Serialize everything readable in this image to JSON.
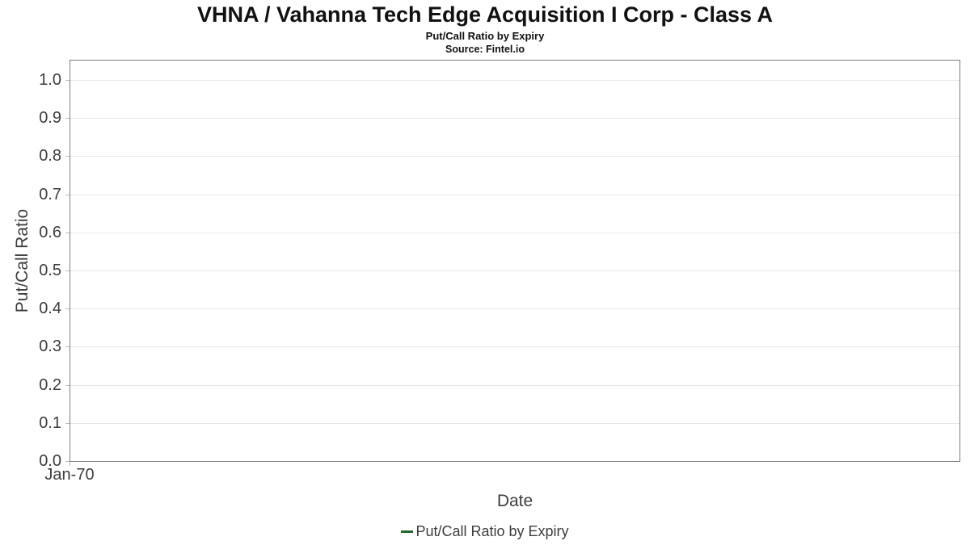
{
  "chart_data": {
    "type": "line",
    "title": "VHNA / Vahanna Tech Edge Acquisition I Corp - Class A",
    "subtitle": "Put/Call Ratio by Expiry",
    "source": "Source: Fintel.io",
    "xlabel": "Date",
    "ylabel": "Put/Call Ratio",
    "x_tick_labels": [
      "Jan-70"
    ],
    "y_tick_labels": [
      "0.0",
      "0.1",
      "0.2",
      "0.3",
      "0.4",
      "0.5",
      "0.6",
      "0.7",
      "0.8",
      "0.9",
      "1.0"
    ],
    "ylim": [
      0.0,
      1.05
    ],
    "grid": true,
    "legend_position": "bottom",
    "series": [
      {
        "name": "Put/Call Ratio by Expiry",
        "color": "#26642f",
        "x": [],
        "values": []
      }
    ]
  },
  "colors": {
    "plot_border": "#7d7d7d",
    "gridline": "#e7e7e7",
    "tick_mark": "#bdbdbd",
    "axis_text": "#3d3d3d",
    "title_text": "#111111",
    "series_green": "#26642f"
  }
}
